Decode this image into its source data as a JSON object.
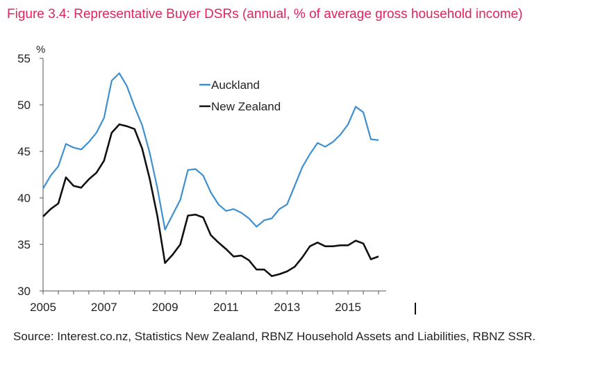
{
  "figure": {
    "title": "Figure 3.4: Representative Buyer DSRs (annual, % of average gross household income)",
    "source": "Source: Interest.co.nz, Statistics New Zealand, RBNZ Household Assets and Liabilities, RBNZ SSR."
  },
  "colors": {
    "title": "#e0245e",
    "auckland": "#3d8fd1",
    "new_zealand": "#111111",
    "axis": "#555555"
  },
  "chart_data": {
    "type": "line",
    "title": "Representative Buyer DSRs (annual, % of average gross household income)",
    "xlabel": "",
    "ylabel": "%",
    "xlim": [
      2005,
      2016.25
    ],
    "ylim": [
      30,
      55
    ],
    "yticks": [
      55,
      50,
      45,
      40,
      35,
      30
    ],
    "xticks": [
      2005,
      2007,
      2009,
      2011,
      2013,
      2015
    ],
    "grid": false,
    "legend": "top-center",
    "series": [
      {
        "name": "Auckland",
        "color": "#3d8fd1",
        "x": [
          2005,
          2005.25,
          2005.5,
          2005.75,
          2006,
          2006.25,
          2006.5,
          2006.75,
          2007,
          2007.25,
          2007.5,
          2007.75,
          2008,
          2008.25,
          2008.5,
          2008.75,
          2009,
          2009.25,
          2009.5,
          2009.75,
          2010,
          2010.25,
          2010.5,
          2010.75,
          2011,
          2011.25,
          2011.5,
          2011.75,
          2012,
          2012.25,
          2012.5,
          2012.75,
          2013,
          2013.25,
          2013.5,
          2013.75,
          2014,
          2014.25,
          2014.5,
          2014.75,
          2015,
          2015.25,
          2015.5,
          2015.75,
          2016
        ],
        "values": [
          41.0,
          42.4,
          43.4,
          45.8,
          45.4,
          45.2,
          46.0,
          47.0,
          48.6,
          52.6,
          53.4,
          52.0,
          49.8,
          47.8,
          44.8,
          41.0,
          36.6,
          38.2,
          39.8,
          43.0,
          43.1,
          42.4,
          40.6,
          39.3,
          38.6,
          38.8,
          38.4,
          37.8,
          36.9,
          37.6,
          37.8,
          38.8,
          39.3,
          41.3,
          43.3,
          44.7,
          45.9,
          45.5,
          46.0,
          46.8,
          47.9,
          49.8,
          49.2,
          46.3,
          46.2
        ]
      },
      {
        "name": "New Zealand",
        "color": "#111111",
        "x": [
          2005,
          2005.25,
          2005.5,
          2005.75,
          2006,
          2006.25,
          2006.5,
          2006.75,
          2007,
          2007.25,
          2007.5,
          2007.75,
          2008,
          2008.25,
          2008.5,
          2008.75,
          2009,
          2009.25,
          2009.5,
          2009.75,
          2010,
          2010.25,
          2010.5,
          2010.75,
          2011,
          2011.25,
          2011.5,
          2011.75,
          2012,
          2012.25,
          2012.5,
          2012.75,
          2013,
          2013.25,
          2013.5,
          2013.75,
          2014,
          2014.25,
          2014.5,
          2014.75,
          2015,
          2015.25,
          2015.5,
          2015.75,
          2016
        ],
        "values": [
          38.0,
          38.8,
          39.4,
          42.2,
          41.3,
          41.1,
          42.0,
          42.7,
          44.0,
          47.0,
          47.9,
          47.7,
          47.4,
          45.3,
          42.0,
          38.0,
          33.0,
          33.9,
          35.0,
          38.1,
          38.2,
          37.9,
          36.0,
          35.2,
          34.5,
          33.7,
          33.8,
          33.3,
          32.3,
          32.3,
          31.6,
          31.8,
          32.1,
          32.6,
          33.6,
          34.8,
          35.2,
          34.8,
          34.8,
          34.9,
          34.9,
          35.4,
          35.1,
          33.4,
          33.7
        ]
      }
    ]
  }
}
